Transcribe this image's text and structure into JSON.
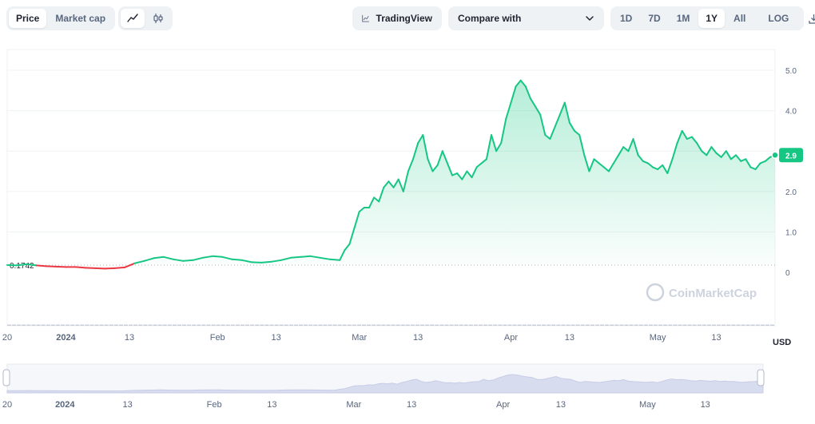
{
  "toolbar": {
    "metric_toggle": [
      {
        "label": "Price",
        "active": true
      },
      {
        "label": "Market cap",
        "active": false
      }
    ],
    "chart_type_icons": [
      "line-chart-icon",
      "candlestick-icon"
    ],
    "tradingview_label": "TradingView",
    "compare_label": "Compare with",
    "ranges": [
      {
        "label": "1D",
        "active": false
      },
      {
        "label": "7D",
        "active": false
      },
      {
        "label": "1M",
        "active": false
      },
      {
        "label": "1Y",
        "active": true
      },
      {
        "label": "All",
        "active": false
      }
    ],
    "log_label": "LOG",
    "download_icon": "download-icon"
  },
  "colors": {
    "up": "#16c784",
    "down": "#ea3943",
    "grid": "#eff2f5",
    "volume": "#c9ceda",
    "navigator_fill": "#d8dcef"
  },
  "watermark": "CoinMarketCap",
  "currency": "USD",
  "chart_data": {
    "type": "area",
    "y_ticks": [
      "5.0",
      "4.0",
      "3.0",
      "2.0",
      "1.0",
      "0"
    ],
    "ylim": [
      0,
      5.5
    ],
    "reference_value": 0.1742,
    "reference_label": "0.1742",
    "current_value": 2.9,
    "current_label": "2.9",
    "x_ticks": [
      {
        "label": "20",
        "bold": false,
        "day": 0
      },
      {
        "label": "2024",
        "bold": true,
        "day": 12
      },
      {
        "label": "13",
        "bold": false,
        "day": 25
      },
      {
        "label": "Feb",
        "bold": false,
        "day": 43
      },
      {
        "label": "13",
        "bold": false,
        "day": 55
      },
      {
        "label": "Mar",
        "bold": false,
        "day": 72
      },
      {
        "label": "13",
        "bold": false,
        "day": 84
      },
      {
        "label": "Apr",
        "bold": false,
        "day": 103
      },
      {
        "label": "13",
        "bold": false,
        "day": 115
      },
      {
        "label": "May",
        "bold": false,
        "day": 133
      },
      {
        "label": "13",
        "bold": false,
        "day": 145
      }
    ],
    "day_range": [
      0,
      157
    ],
    "series": [
      {
        "values": [
          [
            0,
            0.18
          ],
          [
            2,
            0.17
          ],
          [
            4,
            0.2
          ],
          [
            6,
            0.17
          ],
          [
            8,
            0.15
          ],
          [
            10,
            0.14
          ],
          [
            12,
            0.13
          ],
          [
            14,
            0.13
          ],
          [
            16,
            0.11
          ],
          [
            18,
            0.1
          ],
          [
            20,
            0.09
          ],
          [
            22,
            0.1
          ],
          [
            24,
            0.12
          ],
          [
            26,
            0.22
          ],
          [
            28,
            0.28
          ],
          [
            30,
            0.35
          ],
          [
            32,
            0.38
          ],
          [
            34,
            0.32
          ],
          [
            36,
            0.28
          ],
          [
            38,
            0.3
          ],
          [
            40,
            0.36
          ],
          [
            42,
            0.4
          ],
          [
            44,
            0.38
          ],
          [
            46,
            0.32
          ],
          [
            48,
            0.3
          ],
          [
            50,
            0.25
          ],
          [
            52,
            0.24
          ],
          [
            54,
            0.26
          ],
          [
            56,
            0.3
          ],
          [
            58,
            0.36
          ],
          [
            60,
            0.38
          ],
          [
            62,
            0.4
          ],
          [
            64,
            0.36
          ],
          [
            66,
            0.32
          ],
          [
            68,
            0.3
          ],
          [
            69,
            0.55
          ],
          [
            70,
            0.7
          ],
          [
            71,
            1.1
          ],
          [
            72,
            1.5
          ],
          [
            73,
            1.6
          ],
          [
            74,
            1.6
          ],
          [
            75,
            1.85
          ],
          [
            76,
            1.75
          ],
          [
            77,
            2.1
          ],
          [
            78,
            2.25
          ],
          [
            79,
            2.1
          ],
          [
            80,
            2.3
          ],
          [
            81,
            2.0
          ],
          [
            82,
            2.5
          ],
          [
            83,
            2.8
          ],
          [
            84,
            3.2
          ],
          [
            85,
            3.4
          ],
          [
            86,
            2.8
          ],
          [
            87,
            2.5
          ],
          [
            88,
            2.65
          ],
          [
            89,
            3.0
          ],
          [
            90,
            2.7
          ],
          [
            91,
            2.4
          ],
          [
            92,
            2.45
          ],
          [
            93,
            2.3
          ],
          [
            94,
            2.5
          ],
          [
            95,
            2.35
          ],
          [
            96,
            2.6
          ],
          [
            97,
            2.7
          ],
          [
            98,
            2.8
          ],
          [
            99,
            3.4
          ],
          [
            100,
            3.0
          ],
          [
            101,
            3.2
          ],
          [
            102,
            3.8
          ],
          [
            103,
            4.2
          ],
          [
            104,
            4.6
          ],
          [
            105,
            4.75
          ],
          [
            106,
            4.6
          ],
          [
            107,
            4.3
          ],
          [
            108,
            4.1
          ],
          [
            109,
            3.9
          ],
          [
            110,
            3.4
          ],
          [
            111,
            3.3
          ],
          [
            112,
            3.6
          ],
          [
            113,
            3.9
          ],
          [
            114,
            4.2
          ],
          [
            115,
            3.7
          ],
          [
            116,
            3.5
          ],
          [
            117,
            3.4
          ],
          [
            118,
            2.9
          ],
          [
            119,
            2.5
          ],
          [
            120,
            2.8
          ],
          [
            121,
            2.7
          ],
          [
            122,
            2.6
          ],
          [
            123,
            2.5
          ],
          [
            124,
            2.7
          ],
          [
            125,
            2.9
          ],
          [
            126,
            3.1
          ],
          [
            127,
            3.0
          ],
          [
            128,
            3.3
          ],
          [
            129,
            2.9
          ],
          [
            130,
            2.75
          ],
          [
            131,
            2.7
          ],
          [
            132,
            2.6
          ],
          [
            133,
            2.55
          ],
          [
            134,
            2.65
          ],
          [
            135,
            2.45
          ],
          [
            136,
            2.8
          ],
          [
            137,
            3.2
          ],
          [
            138,
            3.5
          ],
          [
            139,
            3.3
          ],
          [
            140,
            3.35
          ],
          [
            141,
            3.2
          ],
          [
            142,
            3.0
          ],
          [
            143,
            2.9
          ],
          [
            144,
            3.1
          ],
          [
            145,
            2.95
          ],
          [
            146,
            2.85
          ],
          [
            147,
            3.0
          ],
          [
            148,
            2.8
          ],
          [
            149,
            2.9
          ],
          [
            150,
            2.75
          ],
          [
            151,
            2.8
          ],
          [
            152,
            2.6
          ],
          [
            153,
            2.55
          ],
          [
            154,
            2.7
          ],
          [
            155,
            2.75
          ],
          [
            156,
            2.85
          ],
          [
            157,
            2.9
          ]
        ]
      }
    ],
    "volume": [
      1,
      1,
      1,
      1,
      1,
      1,
      1,
      1,
      1,
      1,
      1,
      1,
      1,
      1,
      1,
      1,
      1,
      1,
      1,
      1,
      1,
      1,
      1,
      1,
      1,
      1,
      1,
      1,
      1,
      1,
      1,
      1,
      1,
      1,
      1,
      1,
      1,
      1,
      1,
      1,
      1,
      1,
      1,
      1,
      1,
      1,
      1,
      1,
      1,
      1,
      1,
      1,
      1,
      1,
      1,
      1,
      1,
      1,
      1,
      1,
      1,
      1,
      1,
      1,
      1,
      1,
      1,
      1,
      1,
      1,
      1,
      1,
      1,
      1,
      1,
      1,
      1,
      1,
      1,
      1,
      1,
      1,
      1,
      1,
      1,
      1,
      1,
      1,
      1,
      1,
      1,
      1,
      1,
      1,
      1,
      1,
      1,
      1,
      1,
      1,
      1,
      1,
      1,
      1,
      1,
      1,
      1,
      1,
      1,
      1,
      1,
      1,
      1,
      1,
      1,
      1,
      1,
      1,
      1,
      1,
      1,
      1,
      1,
      1,
      1,
      1,
      1,
      1,
      1,
      1,
      1,
      1,
      1,
      1,
      1,
      1,
      1,
      1,
      1,
      1,
      1,
      1,
      1,
      1,
      1,
      1,
      1,
      1,
      1,
      1,
      1,
      1,
      1,
      1,
      1,
      1,
      1,
      1
    ]
  }
}
